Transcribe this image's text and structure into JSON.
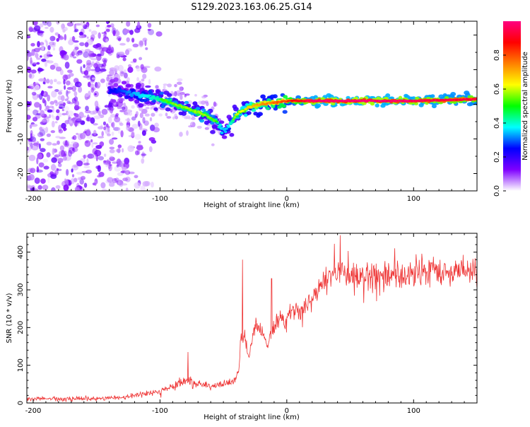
{
  "title": "S129.2023.163.06.25.G14",
  "chart_data": [
    {
      "type": "heatmap",
      "xlabel": "Height of straight line (km)",
      "ylabel": "Frequency (Hz)",
      "xlim": [
        -205,
        150
      ],
      "ylim": [
        -25,
        24
      ],
      "xticks": [
        -200,
        -100,
        0,
        100
      ],
      "yticks": [
        -20,
        -10,
        0,
        10,
        20
      ],
      "colorbar": {
        "label": "Normalized spectral amplitude",
        "range": [
          0,
          1
        ],
        "ticks": [
          "0.0",
          "0.2",
          "0.4",
          "0.6",
          "0.8"
        ],
        "colors": [
          "#ffffff",
          "#7f00ff",
          "#0000ff",
          "#00ffff",
          "#00ff00",
          "#ffff00",
          "#ff8000",
          "#ff0000",
          "#ff0080"
        ]
      },
      "ridge": {
        "x": [
          -135,
          -120,
          -100,
          -80,
          -65,
          -55,
          -50,
          -45,
          -40,
          -35,
          -30,
          -20,
          -10,
          0,
          20,
          50,
          100,
          150
        ],
        "y": [
          4,
          3,
          1.5,
          -1,
          -3,
          -5,
          -8,
          -6,
          -3,
          -2,
          -1,
          0,
          0.5,
          1,
          1,
          1,
          1,
          1.5
        ],
        "amplitude": [
          0.3,
          0.4,
          0.5,
          0.55,
          0.55,
          0.5,
          0.4,
          0.45,
          0.55,
          0.6,
          0.65,
          0.7,
          0.75,
          0.8,
          0.95,
          0.98,
          0.95,
          0.9
        ]
      }
    },
    {
      "type": "line",
      "xlabel": "Height of straight line (km)",
      "ylabel": "SNR (10 * v/v)",
      "xlim": [
        -205,
        150
      ],
      "ylim": [
        0,
        450
      ],
      "xticks": [
        -200,
        -100,
        0,
        100
      ],
      "yticks": [
        0,
        100,
        200,
        300,
        400
      ],
      "color": "#ee3333",
      "x": [
        -205,
        -180,
        -150,
        -130,
        -120,
        -100,
        -90,
        -80,
        -70,
        -60,
        -50,
        -42,
        -38,
        -36,
        -33,
        -30,
        -25,
        -20,
        -15,
        -10,
        -5,
        0,
        5,
        10,
        15,
        20,
        25,
        30,
        40,
        50,
        60,
        70,
        80,
        90,
        100,
        110,
        120,
        130,
        140,
        150
      ],
      "y": [
        12,
        10,
        12,
        15,
        20,
        30,
        45,
        60,
        50,
        45,
        50,
        55,
        80,
        180,
        170,
        120,
        200,
        190,
        150,
        200,
        230,
        220,
        250,
        240,
        260,
        280,
        300,
        320,
        350,
        340,
        330,
        345,
        340,
        335,
        345,
        350,
        352,
        350,
        355,
        352
      ],
      "peaks": [
        {
          "x": -78,
          "y": 135
        },
        {
          "x": -35,
          "y": 380
        },
        {
          "x": -12,
          "y": 330
        },
        {
          "x": 42,
          "y": 445
        },
        {
          "x": 85,
          "y": 410
        }
      ]
    }
  ]
}
